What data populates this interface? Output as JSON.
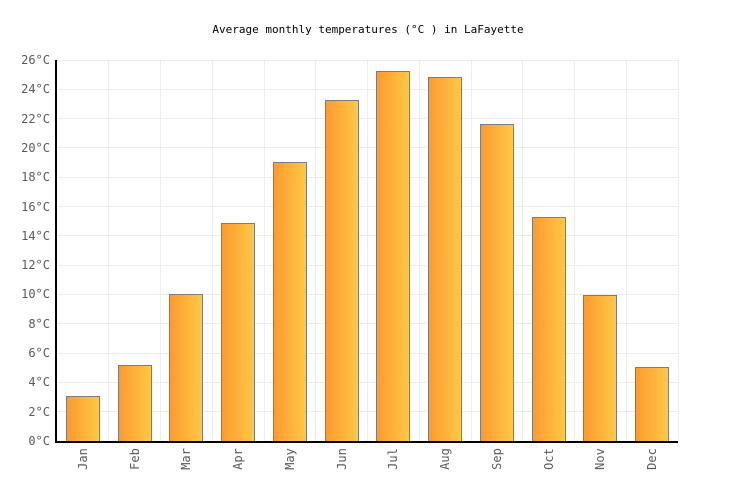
{
  "chart_data": {
    "type": "bar",
    "title": "Average monthly temperatures (°C ) in LaFayette",
    "categories": [
      "Jan",
      "Feb",
      "Mar",
      "Apr",
      "May",
      "Jun",
      "Jul",
      "Aug",
      "Sep",
      "Oct",
      "Nov",
      "Dec"
    ],
    "values": [
      3.0,
      5.1,
      10.0,
      14.8,
      19.0,
      23.2,
      25.2,
      24.8,
      21.6,
      15.2,
      9.9,
      5.0
    ],
    "unit": "°C",
    "ylim": [
      0,
      26
    ],
    "ytick_step": 2,
    "ytick_labels": [
      "0°C",
      "2°C",
      "4°C",
      "6°C",
      "8°C",
      "10°C",
      "12°C",
      "14°C",
      "16°C",
      "18°C",
      "20°C",
      "22°C",
      "24°C",
      "26°C"
    ],
    "grid": true,
    "legend": "none",
    "colors": {
      "bar_gradient_left": "#fd9a31",
      "bar_gradient_right": "#ffc845",
      "bar_border": "#7d7d7d",
      "grid_line": "#ececec",
      "axis_line": "#000000",
      "tick_label": "#5a5a5a",
      "title_text": "#000000",
      "background": "#ffffff"
    }
  }
}
